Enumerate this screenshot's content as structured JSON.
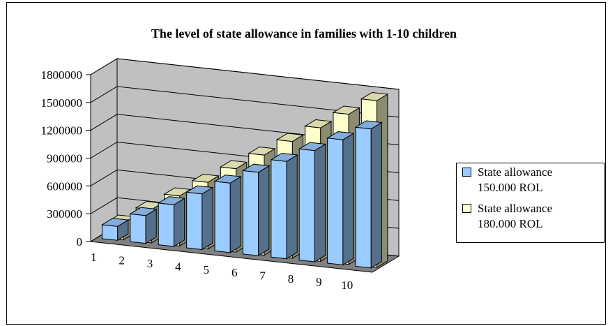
{
  "chart_data": {
    "type": "bar",
    "title": "The level of state allowance in families with 1-10 children",
    "categories": [
      "1",
      "2",
      "3",
      "4",
      "5",
      "6",
      "7",
      "8",
      "9",
      "10"
    ],
    "series": [
      {
        "name": "State allowance 150.000 ROL",
        "name_lines": [
          "State allowance",
          "150.000 ROL"
        ],
        "color": "#9BCCFF",
        "values": [
          150000,
          300000,
          450000,
          600000,
          750000,
          900000,
          1050000,
          1200000,
          1350000,
          1500000
        ]
      },
      {
        "name": "State allowance 180.000 ROL",
        "name_lines": [
          "State allowance",
          "180.000 ROL"
        ],
        "color": "#FFFFCC",
        "values": [
          180000,
          360000,
          540000,
          720000,
          900000,
          1080000,
          1260000,
          1440000,
          1620000,
          1800000
        ]
      }
    ],
    "y_ticks": [
      "0",
      "300000",
      "600000",
      "900000",
      "1200000",
      "1500000",
      "1800000"
    ],
    "ylim": [
      0,
      1800000
    ],
    "grid": true,
    "legend": "right",
    "wall_color": "#C0C0C0",
    "floor_color": "#808080"
  }
}
